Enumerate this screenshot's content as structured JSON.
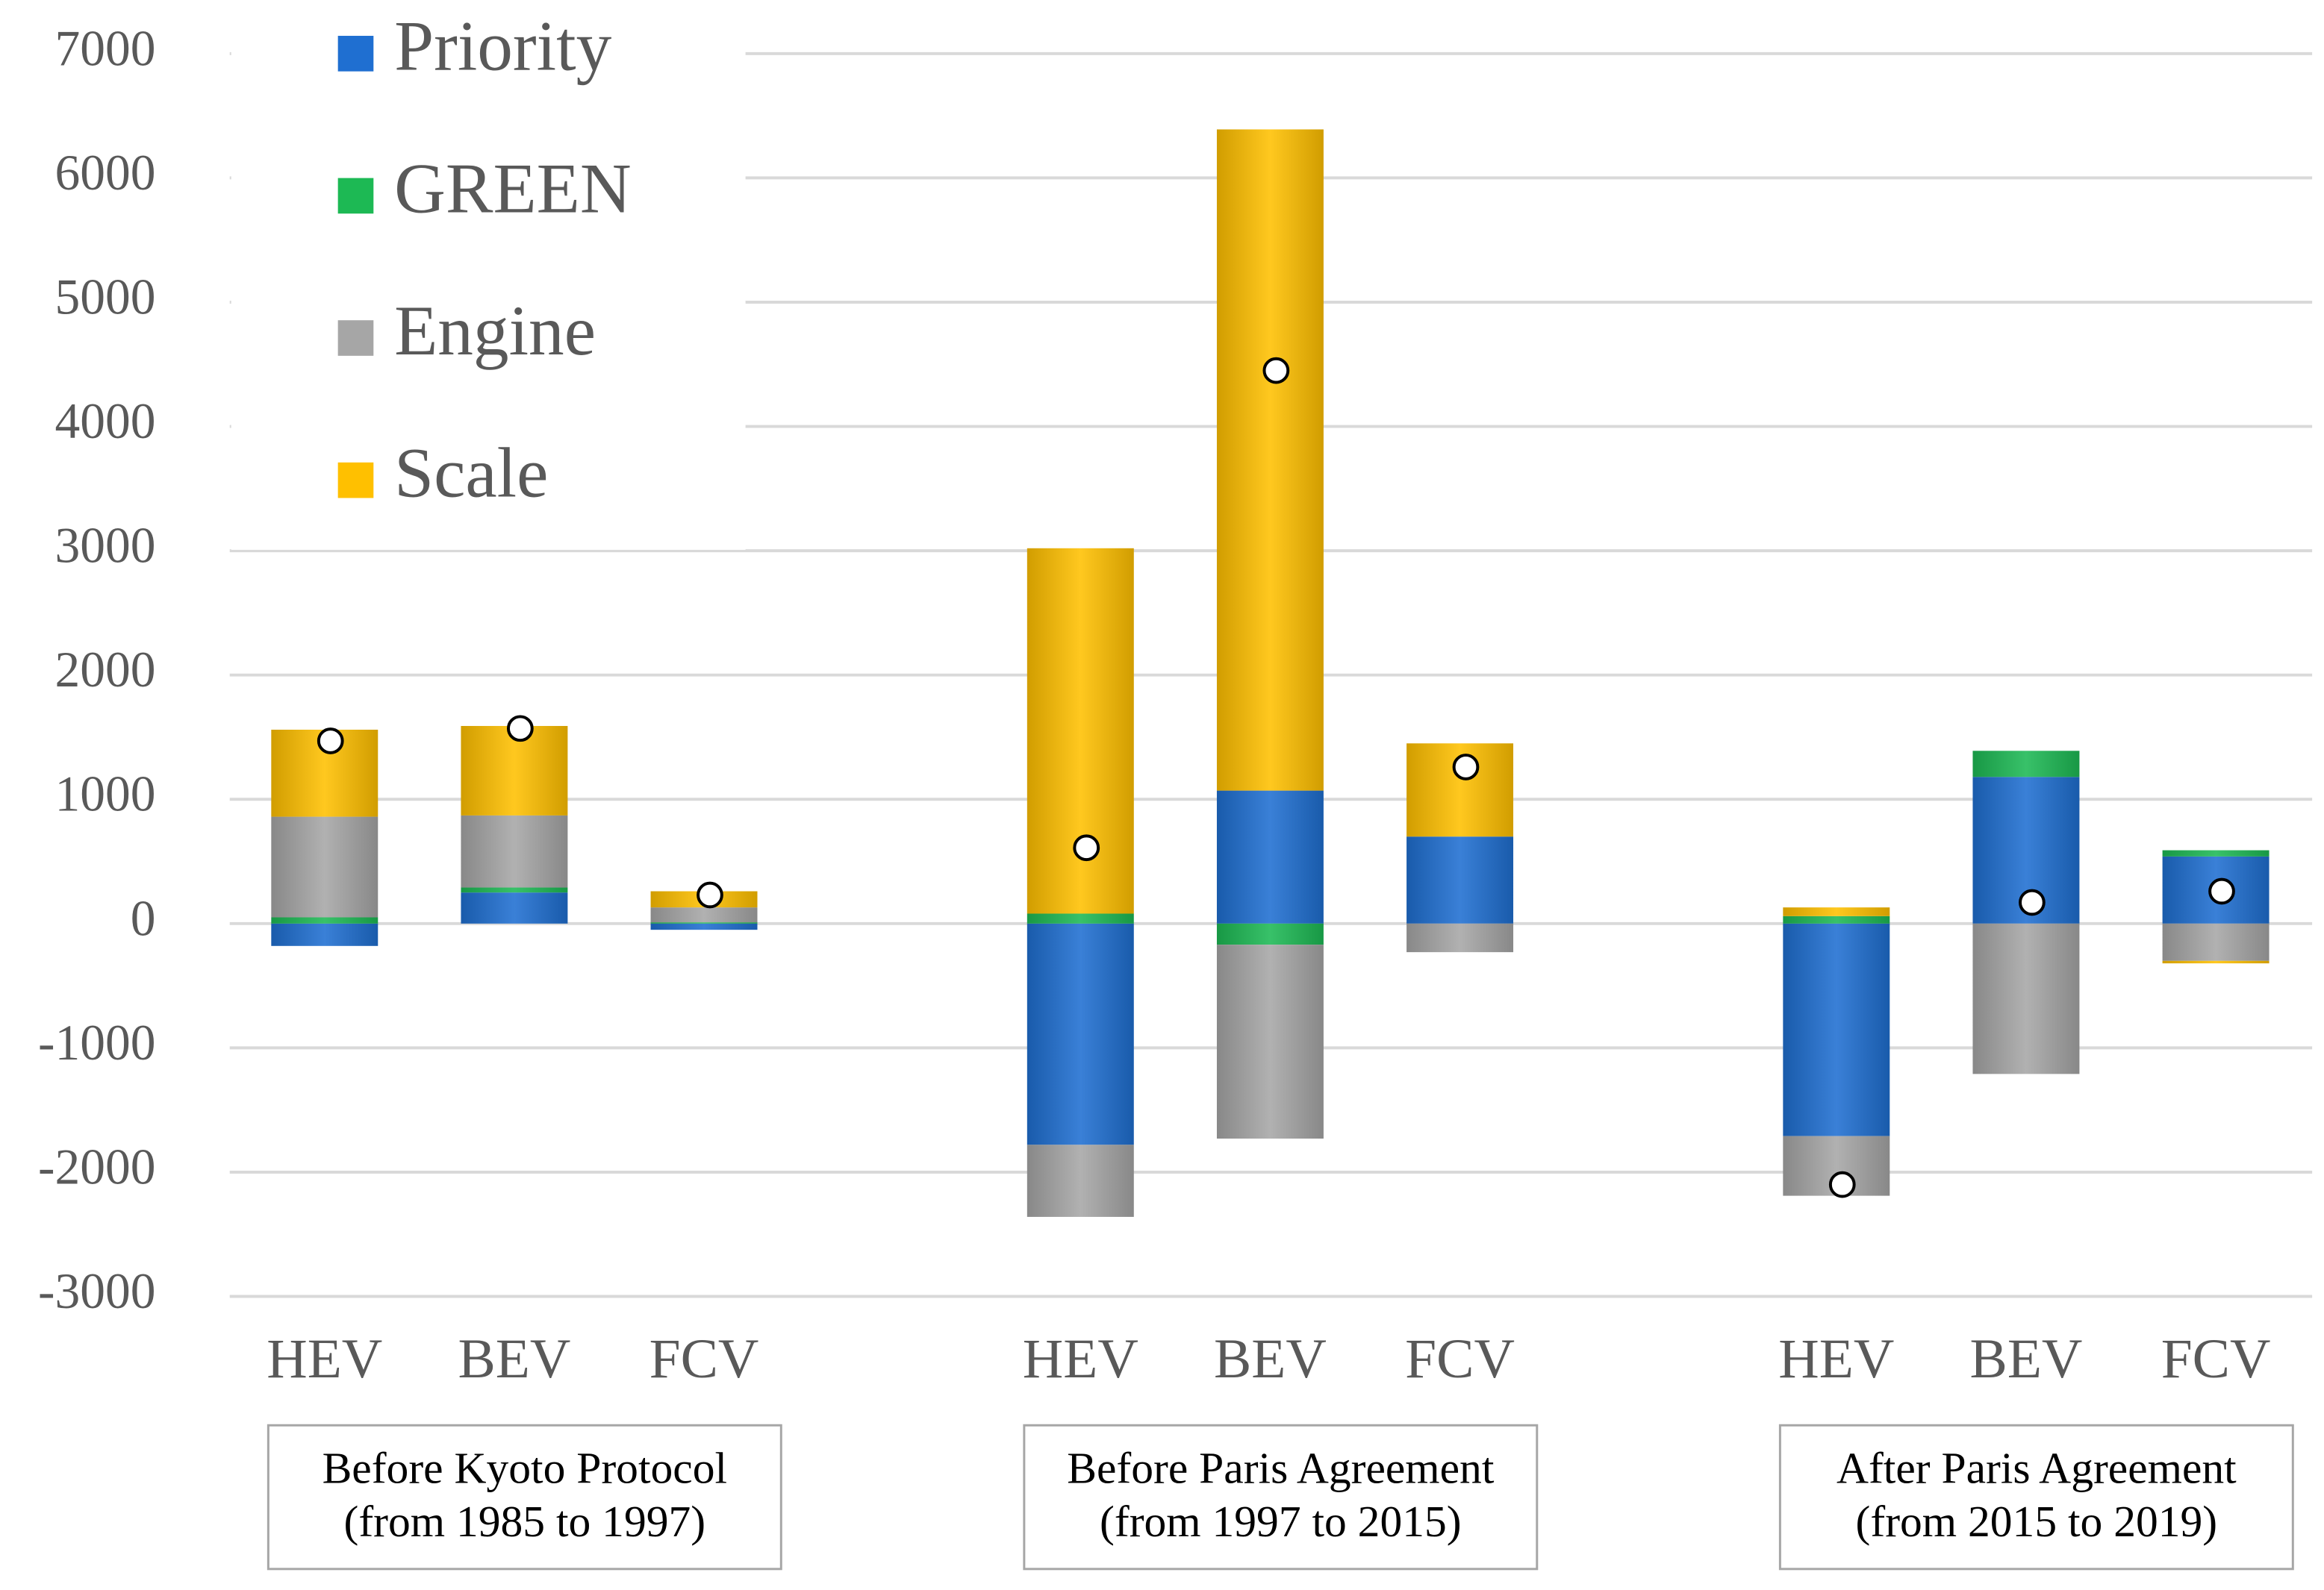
{
  "chart_data": {
    "type": "stacked_bar",
    "categories": [
      "HEV",
      "BEV",
      "FCV",
      "HEV",
      "BEV",
      "FCV",
      "HEV",
      "BEV",
      "FCV"
    ],
    "groups": [
      {
        "lines": [
          "Before Kyoto Protocol",
          "(from 1985 to 1997)"
        ],
        "size": 3
      },
      {
        "lines": [
          "Before Paris Agreement",
          "(from 1997 to 2015)"
        ],
        "size": 3
      },
      {
        "lines": [
          "After Paris Agreement",
          "(from 2015 to 2019)"
        ],
        "size": 3
      }
    ],
    "series": [
      {
        "name": "Priority",
        "color": "#1f6fd1",
        "values": [
          -180,
          250,
          -50,
          -1780,
          1070,
          700,
          -1710,
          1180,
          540
        ]
      },
      {
        "name": "GREEN",
        "color": "#1db954",
        "values": [
          50,
          40,
          10,
          80,
          -170,
          0,
          60,
          210,
          50
        ]
      },
      {
        "name": "Engine",
        "color": "#a6a6a6",
        "values": [
          810,
          580,
          120,
          -580,
          -1560,
          -230,
          -480,
          -1210,
          -300
        ]
      },
      {
        "name": "Scale",
        "color": "#ffc000",
        "values": [
          700,
          720,
          130,
          2940,
          5320,
          750,
          70,
          0,
          -20
        ]
      }
    ],
    "markers": [
      1470,
      1570,
      230,
      610,
      4450,
      1260,
      -2100,
      170,
      260
    ],
    "ylim": [
      -3000,
      7000
    ],
    "yticks": [
      -3000,
      -2000,
      -1000,
      0,
      1000,
      2000,
      3000,
      4000,
      5000,
      6000,
      7000
    ],
    "grid": true,
    "legend": "upper left"
  }
}
